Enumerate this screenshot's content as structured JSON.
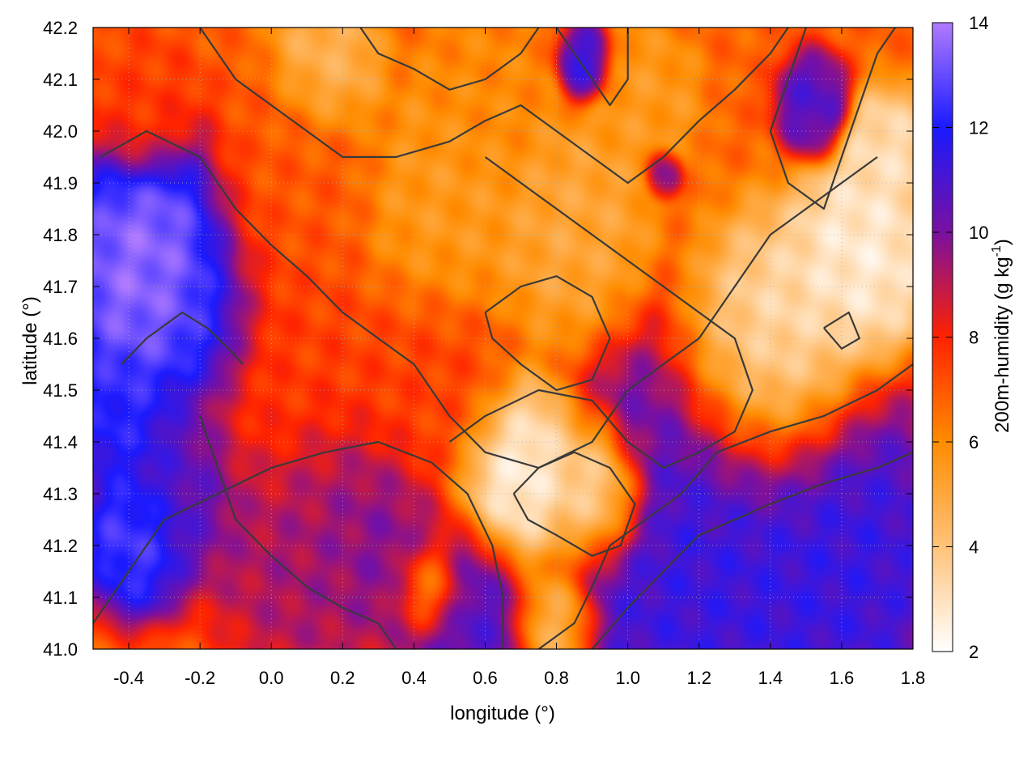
{
  "chart_data": {
    "type": "heatmap",
    "title": "",
    "xlabel": "longitude (°)",
    "ylabel": "latitude (°)",
    "colorbar_label": "200m-humidity (g kg",
    "colorbar_label_sup": "-1",
    "colorbar_label_end": ")",
    "xlim": [
      -0.5,
      1.8
    ],
    "ylim": [
      41.0,
      42.2
    ],
    "clim": [
      2,
      14
    ],
    "x_ticks": [
      -0.4,
      -0.2,
      0.0,
      0.2,
      0.4,
      0.6,
      0.8,
      1.0,
      1.2,
      1.4,
      1.6,
      1.8
    ],
    "x_tick_labels": [
      "-0.4",
      "-0.2",
      "0.0",
      "0.2",
      "0.4",
      "0.6",
      "0.8",
      "1.0",
      "1.2",
      "1.4",
      "1.6",
      "1.8"
    ],
    "y_ticks": [
      41.0,
      41.1,
      41.2,
      41.3,
      41.4,
      41.5,
      41.6,
      41.7,
      41.8,
      41.9,
      42.0,
      42.1,
      42.2
    ],
    "y_tick_labels": [
      "41.0",
      "41.1",
      "41.2",
      "41.3",
      "41.4",
      "41.5",
      "41.6",
      "41.7",
      "41.8",
      "41.9",
      "42.0",
      "42.1",
      "42.2"
    ],
    "colorbar_ticks": [
      2,
      4,
      6,
      8,
      10,
      12,
      14
    ],
    "colorbar_tick_labels": [
      "2",
      "4",
      "6",
      "8",
      "10",
      "12",
      "14"
    ],
    "colormap": [
      "#ffffff",
      "#ffc37a",
      "#ff8c00",
      "#ff2200",
      "#7a10a0",
      "#1a1aff",
      "#b07bff"
    ],
    "grid": true,
    "field_blobs": [
      {
        "lon": -0.32,
        "lat": 41.72,
        "r": 0.22,
        "v": 14.0
      },
      {
        "lon": -0.2,
        "lat": 41.62,
        "r": 0.14,
        "v": 13.5
      },
      {
        "lon": -0.4,
        "lat": 41.45,
        "r": 0.12,
        "v": 12.5
      },
      {
        "lon": -0.38,
        "lat": 41.22,
        "r": 0.12,
        "v": 13.0
      },
      {
        "lon": -0.25,
        "lat": 41.33,
        "r": 0.16,
        "v": 11.0
      },
      {
        "lon": 0.1,
        "lat": 41.22,
        "r": 0.22,
        "v": 9.5
      },
      {
        "lon": 0.3,
        "lat": 41.22,
        "r": 0.16,
        "v": 10.0
      },
      {
        "lon": 0.55,
        "lat": 41.08,
        "r": 0.15,
        "v": 11.0
      },
      {
        "lon": 1.25,
        "lat": 41.15,
        "r": 0.4,
        "v": 11.5
      },
      {
        "lon": 1.6,
        "lat": 41.18,
        "r": 0.25,
        "v": 11.5
      },
      {
        "lon": 0.88,
        "lat": 42.13,
        "r": 0.06,
        "v": 11.5
      },
      {
        "lon": 1.52,
        "lat": 42.05,
        "r": 0.08,
        "v": 11.0
      },
      {
        "lon": 1.1,
        "lat": 41.92,
        "r": 0.04,
        "v": 10.5
      },
      {
        "lon": 1.05,
        "lat": 41.42,
        "r": 0.07,
        "v": 10.0
      },
      {
        "lon": 0.7,
        "lat": 41.33,
        "r": 0.16,
        "v": 2.0
      },
      {
        "lon": 0.92,
        "lat": 41.3,
        "r": 0.12,
        "v": 2.0
      },
      {
        "lon": 1.4,
        "lat": 41.55,
        "r": 0.22,
        "v": 2.5
      },
      {
        "lon": 1.65,
        "lat": 41.75,
        "r": 0.16,
        "v": 2.5
      },
      {
        "lon": 1.72,
        "lat": 41.95,
        "r": 0.1,
        "v": 3.0
      },
      {
        "lon": 0.15,
        "lat": 42.13,
        "r": 0.12,
        "v": 4.5
      },
      {
        "lon": 0.5,
        "lat": 41.85,
        "r": 0.2,
        "v": 5.5
      },
      {
        "lon": 0.85,
        "lat": 41.8,
        "r": 0.18,
        "v": 5.0
      },
      {
        "lon": 0.6,
        "lat": 42.05,
        "r": 0.15,
        "v": 6.0
      },
      {
        "lon": 0.05,
        "lat": 41.9,
        "r": 0.2,
        "v": 7.0
      },
      {
        "lon": 0.0,
        "lat": 41.55,
        "r": 0.25,
        "v": 7.5
      },
      {
        "lon": 0.45,
        "lat": 41.5,
        "r": 0.2,
        "v": 7.5
      },
      {
        "lon": -0.35,
        "lat": 42.05,
        "r": 0.12,
        "v": 7.5
      },
      {
        "lon": 0.8,
        "lat": 41.05,
        "r": 0.1,
        "v": 4.0
      },
      {
        "lon": 0.45,
        "lat": 41.12,
        "r": 0.08,
        "v": 4.5
      },
      {
        "lon": 1.05,
        "lat": 42.05,
        "r": 0.12,
        "v": 5.5
      }
    ],
    "contours": [
      [
        [
          -0.5,
          41.05
        ],
        [
          -0.4,
          41.15
        ],
        [
          -0.3,
          41.25
        ],
        [
          -0.15,
          41.3
        ],
        [
          0.0,
          41.35
        ],
        [
          0.15,
          41.38
        ],
        [
          0.3,
          41.4
        ],
        [
          0.45,
          41.36
        ],
        [
          0.55,
          41.3
        ],
        [
          0.62,
          41.2
        ],
        [
          0.65,
          41.1
        ],
        [
          0.65,
          41.0
        ]
      ],
      [
        [
          -0.48,
          41.95
        ],
        [
          -0.35,
          42.0
        ],
        [
          -0.2,
          41.95
        ],
        [
          -0.1,
          41.85
        ],
        [
          0.0,
          41.78
        ],
        [
          0.1,
          41.72
        ],
        [
          0.2,
          41.65
        ],
        [
          0.3,
          41.6
        ],
        [
          0.4,
          41.55
        ],
        [
          0.5,
          41.45
        ],
        [
          0.6,
          41.38
        ],
        [
          0.75,
          41.35
        ],
        [
          0.9,
          41.4
        ],
        [
          1.0,
          41.5
        ],
        [
          1.1,
          41.55
        ],
        [
          1.2,
          41.6
        ],
        [
          1.3,
          41.7
        ],
        [
          1.4,
          41.8
        ],
        [
          1.5,
          41.85
        ],
        [
          1.6,
          41.9
        ],
        [
          1.7,
          41.95
        ]
      ],
      [
        [
          0.5,
          41.4
        ],
        [
          0.6,
          41.45
        ],
        [
          0.75,
          41.5
        ],
        [
          0.9,
          41.48
        ],
        [
          1.0,
          41.4
        ],
        [
          1.1,
          41.35
        ],
        [
          1.2,
          41.38
        ],
        [
          1.3,
          41.42
        ],
        [
          1.35,
          41.5
        ],
        [
          1.3,
          41.6
        ],
        [
          1.2,
          41.65
        ],
        [
          1.1,
          41.7
        ],
        [
          1.0,
          41.75
        ],
        [
          0.9,
          41.8
        ],
        [
          0.8,
          41.85
        ],
        [
          0.7,
          41.9
        ],
        [
          0.6,
          41.95
        ]
      ],
      [
        [
          0.68,
          41.3
        ],
        [
          0.75,
          41.35
        ],
        [
          0.85,
          41.38
        ],
        [
          0.95,
          41.35
        ],
        [
          1.02,
          41.28
        ],
        [
          0.98,
          41.2
        ],
        [
          0.9,
          41.18
        ],
        [
          0.8,
          41.22
        ],
        [
          0.72,
          41.25
        ],
        [
          0.68,
          41.3
        ]
      ],
      [
        [
          -0.2,
          42.2
        ],
        [
          -0.1,
          42.1
        ],
        [
          0.0,
          42.05
        ],
        [
          0.1,
          42.0
        ],
        [
          0.2,
          41.95
        ],
        [
          0.35,
          41.95
        ],
        [
          0.5,
          41.98
        ],
        [
          0.6,
          42.02
        ],
        [
          0.7,
          42.05
        ],
        [
          0.8,
          42.0
        ],
        [
          0.9,
          41.95
        ],
        [
          1.0,
          41.9
        ],
        [
          1.1,
          41.95
        ],
        [
          1.2,
          42.02
        ],
        [
          1.3,
          42.08
        ],
        [
          1.4,
          42.15
        ],
        [
          1.45,
          42.2
        ]
      ],
      [
        [
          0.25,
          42.2
        ],
        [
          0.3,
          42.15
        ],
        [
          0.4,
          42.12
        ],
        [
          0.5,
          42.08
        ],
        [
          0.6,
          42.1
        ],
        [
          0.7,
          42.15
        ],
        [
          0.75,
          42.2
        ]
      ],
      [
        [
          0.8,
          42.2
        ],
        [
          0.85,
          42.15
        ],
        [
          0.9,
          42.1
        ],
        [
          0.95,
          42.05
        ],
        [
          1.0,
          42.1
        ],
        [
          1.0,
          42.2
        ]
      ],
      [
        [
          1.5,
          42.2
        ],
        [
          1.45,
          42.1
        ],
        [
          1.4,
          42.0
        ],
        [
          1.45,
          41.9
        ],
        [
          1.55,
          41.85
        ],
        [
          1.6,
          41.95
        ],
        [
          1.65,
          42.05
        ],
        [
          1.7,
          42.15
        ],
        [
          1.75,
          42.2
        ]
      ],
      [
        [
          -0.2,
          41.45
        ],
        [
          -0.15,
          41.35
        ],
        [
          -0.1,
          41.25
        ],
        [
          0.0,
          41.18
        ],
        [
          0.1,
          41.12
        ],
        [
          0.2,
          41.08
        ],
        [
          0.3,
          41.05
        ],
        [
          0.35,
          41.0
        ]
      ],
      [
        [
          0.9,
          41.0
        ],
        [
          1.0,
          41.08
        ],
        [
          1.1,
          41.15
        ],
        [
          1.2,
          41.22
        ],
        [
          1.3,
          41.25
        ],
        [
          1.4,
          41.28
        ],
        [
          1.55,
          41.32
        ],
        [
          1.7,
          41.35
        ],
        [
          1.8,
          41.38
        ]
      ],
      [
        [
          0.75,
          41.0
        ],
        [
          0.85,
          41.05
        ],
        [
          0.9,
          41.12
        ],
        [
          0.95,
          41.2
        ],
        [
          1.05,
          41.25
        ],
        [
          1.15,
          41.3
        ],
        [
          1.25,
          41.38
        ],
        [
          1.4,
          41.42
        ],
        [
          1.55,
          41.45
        ],
        [
          1.7,
          41.5
        ],
        [
          1.8,
          41.55
        ]
      ],
      [
        [
          -0.42,
          41.55
        ],
        [
          -0.35,
          41.6
        ],
        [
          -0.25,
          41.65
        ],
        [
          -0.18,
          41.62
        ],
        [
          -0.12,
          41.58
        ],
        [
          -0.08,
          41.55
        ]
      ],
      [
        [
          0.6,
          41.65
        ],
        [
          0.7,
          41.7
        ],
        [
          0.8,
          41.72
        ],
        [
          0.9,
          41.68
        ],
        [
          0.95,
          41.6
        ],
        [
          0.9,
          41.52
        ],
        [
          0.8,
          41.5
        ],
        [
          0.7,
          41.55
        ],
        [
          0.62,
          41.6
        ],
        [
          0.6,
          41.65
        ]
      ],
      [
        [
          1.55,
          41.62
        ],
        [
          1.6,
          41.58
        ],
        [
          1.65,
          41.6
        ],
        [
          1.62,
          41.65
        ],
        [
          1.55,
          41.62
        ]
      ]
    ]
  }
}
